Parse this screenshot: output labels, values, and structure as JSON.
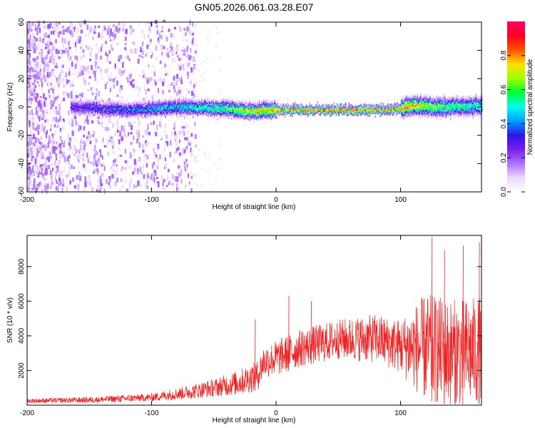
{
  "title": "GN05.2026.061.03.28.E07",
  "chart_data": [
    {
      "type": "heatmap",
      "panel": "top",
      "xlabel": "Height of straight line (km)",
      "ylabel": "Frequency (Hz)",
      "xlim": [
        -200,
        165
      ],
      "ylim": [
        -60,
        60
      ],
      "x_ticks": [
        -200,
        -100,
        0,
        100
      ],
      "y_ticks": [
        -60,
        -40,
        -20,
        0,
        20,
        40,
        60
      ],
      "colorbar": {
        "label": "Normalized spectral amplitude",
        "range": [
          0,
          1
        ],
        "ticks": [
          "0.0",
          "0.2",
          "0.4",
          "0.6",
          "0.8"
        ],
        "tick_values": [
          0.0,
          0.2,
          0.4,
          0.6,
          0.8
        ],
        "colors": [
          "#ffffff",
          "#ead8ff",
          "#b070ff",
          "#7a1cf0",
          "#2a18e6",
          "#00a0ff",
          "#00ffee",
          "#00ff30",
          "#a0ff00",
          "#ffe000",
          "#ff5000",
          "#ff0020",
          "#ff0066"
        ]
      },
      "band_center_hz": [
        {
          "x": -165,
          "y": 0
        },
        {
          "x": -120,
          "y": -2
        },
        {
          "x": -80,
          "y": 0
        },
        {
          "x": -40,
          "y": -1
        },
        {
          "x": -20,
          "y": -3
        },
        {
          "x": 0,
          "y": -2
        },
        {
          "x": 50,
          "y": -2
        },
        {
          "x": 90,
          "y": -2
        },
        {
          "x": 110,
          "y": 1
        },
        {
          "x": 130,
          "y": 0
        },
        {
          "x": 165,
          "y": 1
        }
      ],
      "band_peak_amplitude": [
        {
          "x": -165,
          "y": 0.32
        },
        {
          "x": -120,
          "y": 0.4
        },
        {
          "x": -80,
          "y": 0.48
        },
        {
          "x": -40,
          "y": 0.62
        },
        {
          "x": -20,
          "y": 0.78
        },
        {
          "x": 0,
          "y": 0.84
        },
        {
          "x": 50,
          "y": 0.87
        },
        {
          "x": 90,
          "y": 0.9
        },
        {
          "x": 110,
          "y": 0.82
        },
        {
          "x": 140,
          "y": 0.62
        },
        {
          "x": 165,
          "y": 0.55
        }
      ]
    },
    {
      "type": "line",
      "panel": "bottom",
      "xlabel": "Height of straight line (km)",
      "ylabel": "SNR (10 * v/v)",
      "xlim": [
        -200,
        165
      ],
      "ylim": [
        0,
        9800
      ],
      "x_ticks": [
        -200,
        -100,
        0,
        100
      ],
      "y_ticks": [
        2000,
        4000,
        6000,
        8000
      ],
      "color": "#ee2222",
      "series": [
        {
          "name": "SNR",
          "envelope_mean": [
            {
              "x": -200,
              "y": 250
            },
            {
              "x": -150,
              "y": 300
            },
            {
              "x": -100,
              "y": 450
            },
            {
              "x": -70,
              "y": 750
            },
            {
              "x": -50,
              "y": 1000
            },
            {
              "x": -30,
              "y": 1300
            },
            {
              "x": -15,
              "y": 1700
            },
            {
              "x": -10,
              "y": 2500
            },
            {
              "x": 0,
              "y": 2700
            },
            {
              "x": 20,
              "y": 3300
            },
            {
              "x": 50,
              "y": 3800
            },
            {
              "x": 80,
              "y": 3850
            },
            {
              "x": 100,
              "y": 3400
            },
            {
              "x": 120,
              "y": 3300
            },
            {
              "x": 140,
              "y": 3000
            },
            {
              "x": 165,
              "y": 3100
            }
          ],
          "envelope_spread": [
            {
              "x": -200,
              "y": 120
            },
            {
              "x": -100,
              "y": 220
            },
            {
              "x": -50,
              "y": 500
            },
            {
              "x": -20,
              "y": 800
            },
            {
              "x": 0,
              "y": 1000
            },
            {
              "x": 50,
              "y": 1100
            },
            {
              "x": 100,
              "y": 1500
            },
            {
              "x": 120,
              "y": 3000
            },
            {
              "x": 165,
              "y": 3000
            }
          ],
          "peaks": [
            {
              "x": -17,
              "y": 4950
            },
            {
              "x": 10,
              "y": 6300
            },
            {
              "x": 28,
              "y": 6000
            },
            {
              "x": 125,
              "y": 9700
            },
            {
              "x": 135,
              "y": 8950
            },
            {
              "x": 150,
              "y": 9200
            },
            {
              "x": 163,
              "y": 9400
            }
          ]
        }
      ]
    }
  ]
}
